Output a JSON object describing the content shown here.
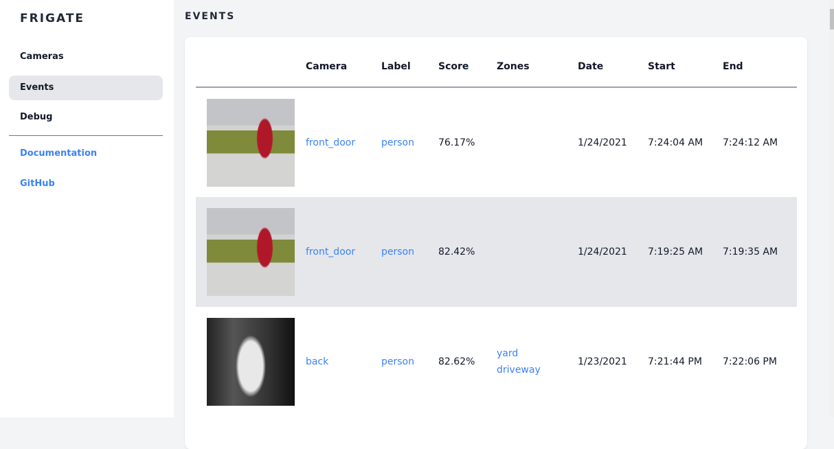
{
  "sidebar": {
    "brand": "FRIGATE",
    "items": [
      {
        "label": "Cameras"
      },
      {
        "label": "Events",
        "active": true
      },
      {
        "label": "Debug"
      }
    ],
    "links": [
      {
        "label": "Documentation"
      },
      {
        "label": "GitHub"
      }
    ]
  },
  "main": {
    "title": "EVENTS",
    "columns": [
      "",
      "Camera",
      "Label",
      "Score",
      "Zones",
      "Date",
      "Start",
      "End"
    ],
    "rows": [
      {
        "thumbnail": "person-walking-dog-front-door",
        "camera": "front_door",
        "label": "person",
        "score": "76.17%",
        "zones": [
          "",
          ""
        ],
        "date": "1/24/2021",
        "start": "7:24:04 AM",
        "end": "7:24:12 AM"
      },
      {
        "thumbnail": "person-walking-dog-front-door",
        "camera": "front_door",
        "label": "person",
        "score": "82.42%",
        "zones": [
          "",
          ""
        ],
        "date": "1/24/2021",
        "start": "7:19:25 AM",
        "end": "7:19:35 AM"
      },
      {
        "thumbnail": "person-night-back",
        "camera": "back",
        "label": "person",
        "score": "82.62%",
        "zones": [
          "yard",
          "driveway"
        ],
        "date": "1/23/2021",
        "start": "7:21:44 PM",
        "end": "7:22:06 PM"
      }
    ]
  },
  "colors": {
    "accent": "#3b82f6",
    "active_bg": "#e5e7eb",
    "page_bg": "#f3f4f6"
  }
}
